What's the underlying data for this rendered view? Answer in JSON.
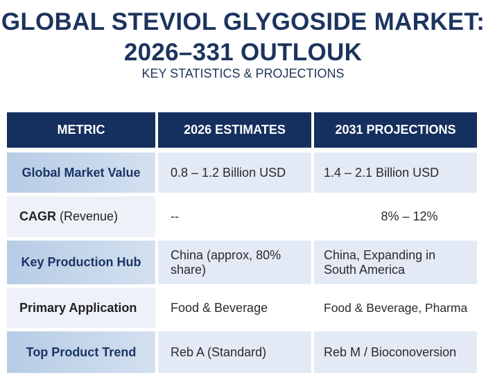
{
  "title_line1": "GLOBAL STEVIOL GLYGOSIDE MARKET:",
  "title_line2": "2026–331 OUTLOUK",
  "subtitle": "KEY STATISTICS & PROJECTIONS",
  "table": {
    "headers": [
      "METRIC",
      "2026 ESTIMATES",
      "2031 PROJECTIONS"
    ],
    "rows": [
      {
        "metric": "Global Market Value",
        "metric_extra": "",
        "v2026": "0.8 – 1.2 Billion USD",
        "v2031": "1.4 – 2.1 Billion USD"
      },
      {
        "metric": "CAGR",
        "metric_extra": " (Revenue)",
        "v2026": "--",
        "v2031": "8% – 12%"
      },
      {
        "metric": "Key Production Hub",
        "metric_extra": "",
        "v2026": "China (approx, 80% share)",
        "v2031": "China, Expanding in South America"
      },
      {
        "metric": "Primary Application",
        "metric_extra": "",
        "v2026": "Food & Beverage",
        "v2031": "Food & Beverage, Pharma"
      },
      {
        "metric": "Top Product Trend",
        "metric_extra": "",
        "v2026": "Reb A (Standard)",
        "v2031": "Reb M / Bioconoversion"
      }
    ]
  }
}
